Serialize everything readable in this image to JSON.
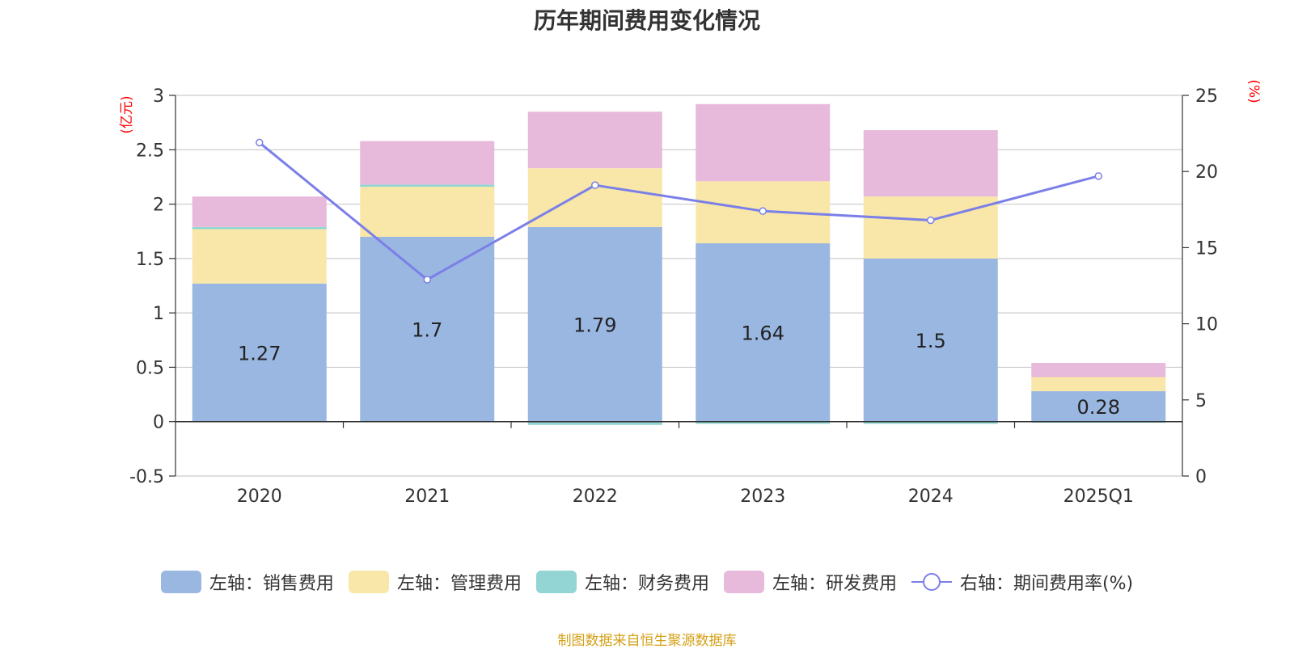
{
  "title": "历年期间费用变化情况",
  "source": "制图数据来自恒生聚源数据库",
  "chart_data": {
    "type": "bar",
    "stacked": true,
    "categories": [
      "2020",
      "2021",
      "2022",
      "2023",
      "2024",
      "2025Q1"
    ],
    "y_left": {
      "unit_label": "(亿元)",
      "ylim": [
        -0.5,
        3
      ],
      "ticks": [
        "-0.5",
        "0",
        "0.5",
        "1",
        "1.5",
        "2",
        "2.5",
        "3"
      ],
      "tick_values": [
        -0.5,
        0,
        0.5,
        1,
        1.5,
        2,
        2.5,
        3
      ]
    },
    "y_right": {
      "unit_label": "(%)",
      "ylim": [
        0,
        25
      ],
      "ticks": [
        "0",
        "5",
        "10",
        "15",
        "20",
        "25"
      ],
      "tick_values": [
        0,
        5,
        10,
        15,
        20,
        25
      ]
    },
    "series": [
      {
        "name": "左轴：销售费用",
        "axis": "left",
        "color": "#9ab7e1",
        "values": [
          1.27,
          1.7,
          1.79,
          1.64,
          1.5,
          0.28
        ],
        "labels": [
          "1.27",
          "1.7",
          "1.79",
          "1.64",
          "1.5",
          "0.28"
        ]
      },
      {
        "name": "左轴：管理费用",
        "axis": "left",
        "color": "#f8e7a8",
        "values": [
          0.5,
          0.46,
          0.54,
          0.57,
          0.57,
          0.13
        ]
      },
      {
        "name": "左轴：财务费用",
        "axis": "left",
        "color": "#93d4d4",
        "values": [
          0.02,
          0.02,
          -0.03,
          -0.02,
          -0.02,
          -0.01
        ]
      },
      {
        "name": "左轴：研发费用",
        "axis": "left",
        "color": "#e7b9da",
        "values": [
          0.28,
          0.4,
          0.52,
          0.71,
          0.61,
          0.13
        ]
      },
      {
        "name": "右轴：期间费用率(%)",
        "axis": "right",
        "type": "line",
        "color": "#7b7fe8",
        "values": [
          21.9,
          12.9,
          19.1,
          17.4,
          16.8,
          19.7
        ]
      }
    ],
    "gridlines": true,
    "legend_position": "bottom"
  },
  "colors": {
    "axis_label": "#ff0000",
    "source_text": "#d4a017",
    "grid": "#cccccc"
  }
}
